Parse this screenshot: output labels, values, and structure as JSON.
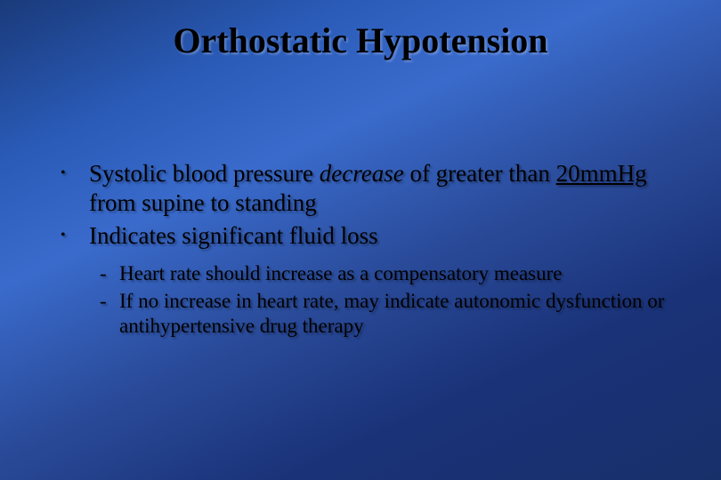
{
  "slide": {
    "background_gradient": [
      "#1a3a7a",
      "#2a5bb8",
      "#3a6bcc",
      "#2a4b9a",
      "#1a3278",
      "#18306a"
    ],
    "title": "Orthostatic Hypotension",
    "title_fontsize": 40,
    "title_color": "#000000",
    "bullets": [
      {
        "segments": {
          "pre": "Systolic blood pressure ",
          "italic": "decrease",
          "mid": " of greater than ",
          "underline": "20mmHg",
          "post": " from supine to standing"
        }
      },
      {
        "text": "Indicates significant fluid loss"
      }
    ],
    "sub_bullets": [
      "Heart rate should increase as a compensatory measure",
      "If no increase in heart rate, may indicate autonomic dysfunction or antihypertensive drug therapy"
    ],
    "body_fontsize": 27,
    "sub_fontsize": 23,
    "text_color": "#000000",
    "shadow_color": "rgba(0,0,0,0.35)"
  }
}
